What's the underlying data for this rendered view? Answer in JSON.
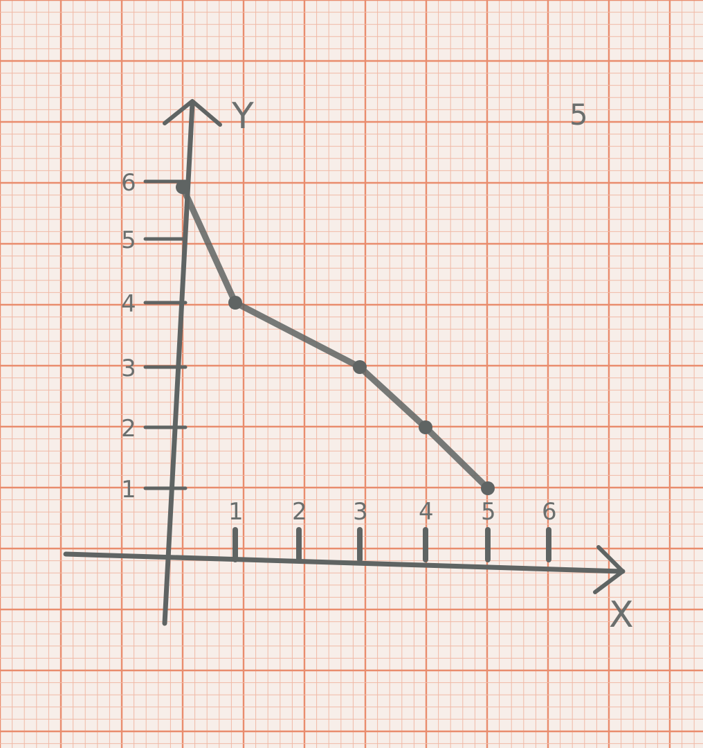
{
  "page_number": "5",
  "colors": {
    "paper": "#f7eee9",
    "grid_minor": "#f0b9a6",
    "grid_major": "#e98c6d",
    "pencil": "#5f6463"
  },
  "chart_data": {
    "type": "line",
    "title": "",
    "xlabel": "X",
    "ylabel": "Y",
    "x_ticks": [
      "1",
      "2",
      "3",
      "4",
      "5",
      "6"
    ],
    "y_ticks": [
      "1",
      "2",
      "3",
      "4",
      "5",
      "6"
    ],
    "xlim": [
      0,
      7
    ],
    "ylim": [
      0,
      7
    ],
    "grid": true,
    "series": [
      {
        "x": [
          0.2,
          1,
          3,
          4,
          5
        ],
        "y": [
          5.9,
          4,
          3,
          2,
          1
        ]
      }
    ]
  }
}
